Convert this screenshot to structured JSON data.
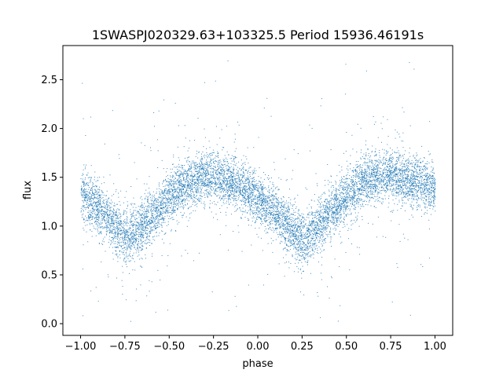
{
  "chart_data": {
    "type": "scatter",
    "title": "1SWASPJ020329.63+103325.5 Period 15936.46191s",
    "xlabel": "phase",
    "ylabel": "flux",
    "xlim": [
      -1.1,
      1.1
    ],
    "ylim": [
      -0.12,
      2.85
    ],
    "x_ticks": [
      -1.0,
      -0.75,
      -0.5,
      -0.25,
      0.0,
      0.25,
      0.5,
      0.75,
      1.0
    ],
    "x_tick_labels": [
      "−1.00",
      "−0.75",
      "−0.50",
      "−0.25",
      "0.00",
      "0.25",
      "0.50",
      "0.75",
      "1.00"
    ],
    "y_ticks": [
      0.0,
      0.5,
      1.0,
      1.5,
      2.0,
      2.5
    ],
    "y_tick_labels": [
      "0.0",
      "0.5",
      "1.0",
      "1.5",
      "2.0",
      "2.5"
    ],
    "grid": false,
    "legend": "none",
    "point_color": "#1f77b4",
    "series": [
      {
        "phase_range": [
          -1.0,
          1.0
        ],
        "trend_x": [
          -1.0,
          -0.9,
          -0.8,
          -0.73,
          -0.6,
          -0.5,
          -0.4,
          -0.3,
          -0.25,
          -0.1,
          0.0,
          0.1,
          0.2,
          0.26,
          0.4,
          0.5,
          0.6,
          0.7,
          0.8,
          0.9,
          1.0
        ],
        "trend_y": [
          1.3,
          1.18,
          0.98,
          0.88,
          1.1,
          1.3,
          1.45,
          1.52,
          1.52,
          1.42,
          1.3,
          1.14,
          0.94,
          0.86,
          1.12,
          1.32,
          1.46,
          1.52,
          1.5,
          1.45,
          1.38
        ],
        "scatter_sd": 0.13
      }
    ]
  }
}
